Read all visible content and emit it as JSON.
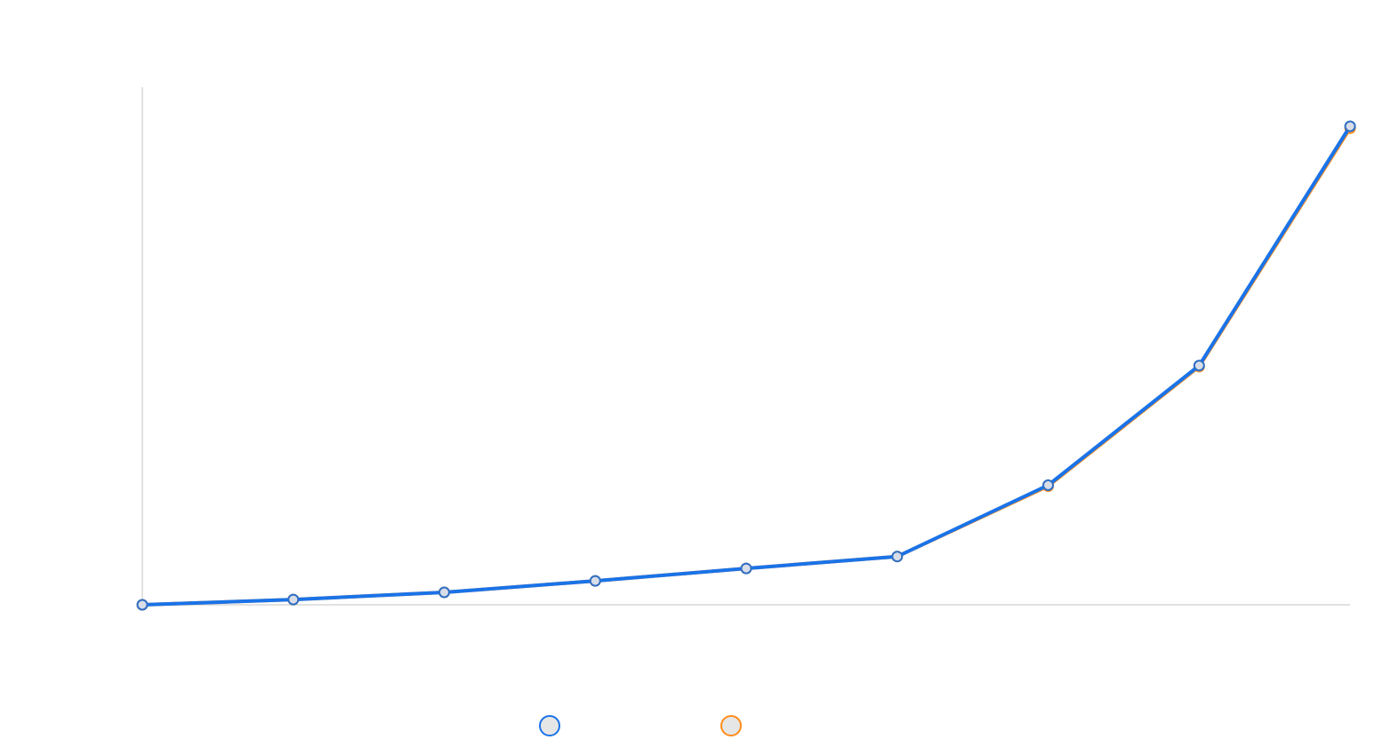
{
  "chart_data": {
    "type": "line",
    "title": "",
    "xlabel": "",
    "ylabel": "",
    "grid": false,
    "legend_placement": "bottom-center",
    "x": [
      0,
      1,
      2,
      3,
      4,
      5,
      6,
      7,
      8
    ],
    "ylim": [
      0,
      100
    ],
    "series": [
      {
        "color": "#1a73e8",
        "values": [
          0.0,
          1.1,
          2.6,
          5.0,
          7.6,
          10.1,
          25.0,
          50.0,
          100.0
        ]
      },
      {
        "color": "#ff8c1a",
        "values": [
          0.0,
          1.1,
          2.6,
          5.0,
          7.6,
          10.1,
          24.8,
          49.8,
          99.6
        ]
      }
    ]
  }
}
